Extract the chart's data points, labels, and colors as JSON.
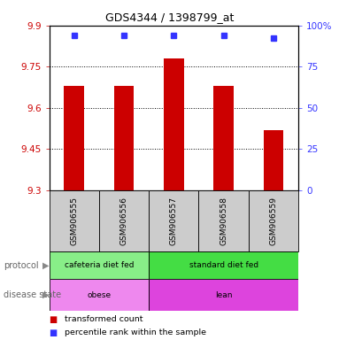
{
  "title": "GDS4344 / 1398799_at",
  "samples": [
    "GSM906555",
    "GSM906556",
    "GSM906557",
    "GSM906558",
    "GSM906559"
  ],
  "bar_values": [
    9.68,
    9.68,
    9.78,
    9.68,
    9.52
  ],
  "percentile_values": [
    9.865,
    9.865,
    9.865,
    9.865,
    9.855
  ],
  "ymin": 9.3,
  "ymax": 9.9,
  "yticks": [
    9.3,
    9.45,
    9.6,
    9.75,
    9.9
  ],
  "ytick_labels": [
    "9.3",
    "9.45",
    "9.6",
    "9.75",
    "9.9"
  ],
  "right_yticks_pct": [
    0,
    25,
    50,
    75,
    100
  ],
  "right_ytick_labels": [
    "0",
    "25",
    "50",
    "75",
    "100%"
  ],
  "bar_color": "#cc0000",
  "percentile_color": "#3333ff",
  "protocol_groups": [
    {
      "label": "cafeteria diet fed",
      "start": 0,
      "end": 2,
      "color": "#88ee88"
    },
    {
      "label": "standard diet fed",
      "start": 2,
      "end": 5,
      "color": "#44dd44"
    }
  ],
  "disease_groups": [
    {
      "label": "obese",
      "start": 0,
      "end": 2,
      "color": "#ee88ee"
    },
    {
      "label": "lean",
      "start": 2,
      "end": 5,
      "color": "#dd44dd"
    }
  ],
  "legend_red": "transformed count",
  "legend_blue": "percentile rank within the sample",
  "protocol_label": "protocol",
  "disease_label": "disease state",
  "sample_bg": "#cccccc",
  "chart_bg": "white",
  "fig_bg": "white"
}
